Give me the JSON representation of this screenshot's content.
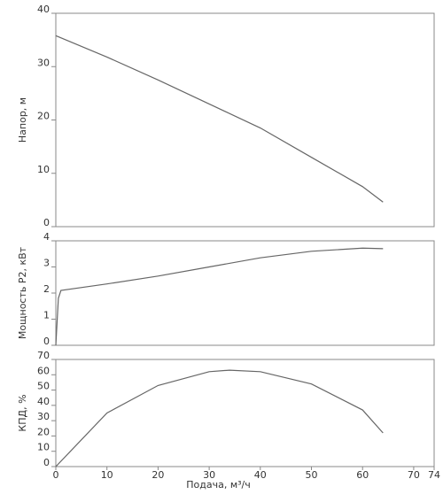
{
  "chart_data": [
    {
      "type": "line",
      "ylabel": "Напор, м",
      "color": "#666666",
      "x": [
        0,
        10,
        20,
        30,
        40,
        50,
        60,
        64
      ],
      "values": [
        35.8,
        31.8,
        27.5,
        23,
        18.5,
        13,
        7.5,
        4.6
      ],
      "xlim": [
        0,
        74
      ],
      "ylim": [
        0,
        40
      ],
      "yticks": [
        0,
        10,
        20,
        30,
        40
      ]
    },
    {
      "type": "line",
      "ylabel": "Мощность P2, кВт",
      "color": "#666666",
      "x": [
        0,
        0.5,
        1,
        10,
        20,
        30,
        40,
        50,
        60,
        64
      ],
      "values": [
        0,
        1.8,
        2.1,
        2.35,
        2.65,
        3.0,
        3.35,
        3.6,
        3.72,
        3.7
      ],
      "xlim": [
        0,
        74
      ],
      "ylim": [
        0,
        4
      ],
      "yticks": [
        0,
        1,
        2,
        3,
        4
      ]
    },
    {
      "type": "line",
      "ylabel": "КПД, %",
      "xlabel": "Подача, м³/ч",
      "color": "#666666",
      "x": [
        0,
        10,
        20,
        30,
        34,
        40,
        50,
        60,
        64
      ],
      "values": [
        0,
        35,
        53,
        62,
        63,
        62,
        54,
        37,
        22
      ],
      "xlim": [
        0,
        74
      ],
      "xticks": [
        0,
        10,
        20,
        30,
        40,
        50,
        60,
        70,
        74
      ],
      "ylim": [
        0,
        70
      ],
      "yticks": [
        0,
        10,
        20,
        30,
        40,
        50,
        60,
        70
      ]
    }
  ]
}
